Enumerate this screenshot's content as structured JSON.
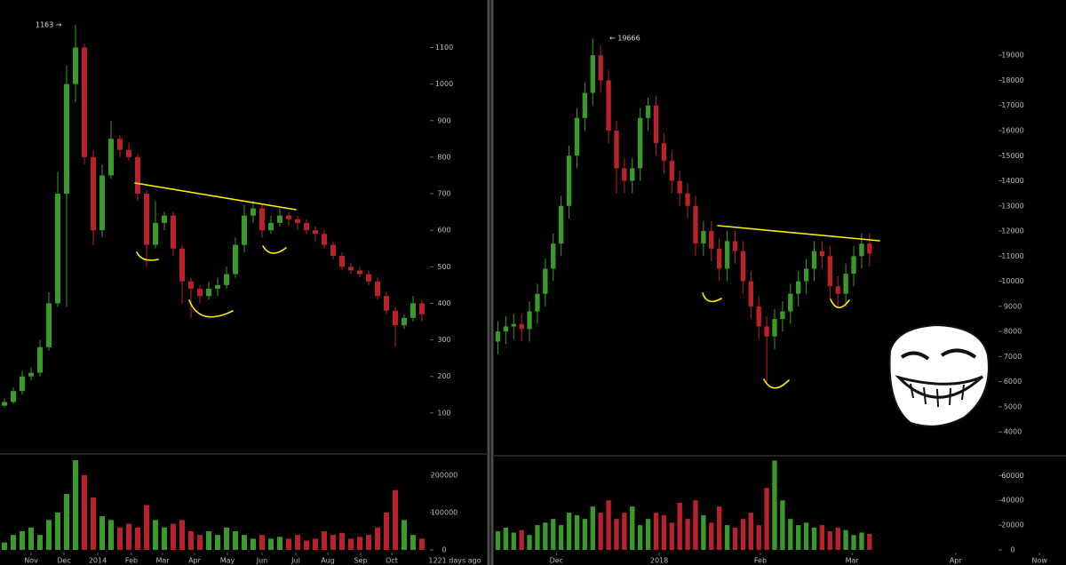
{
  "chart_data": [
    {
      "type": "candlestick",
      "annotation": "1163 →",
      "footer_note": "1221 days ago",
      "up_color": "#3a9a2c",
      "down_color": "#b8222a",
      "xlim": [
        -0.5,
        50.5
      ],
      "xticks": [
        {
          "value": 3,
          "label": "Nov"
        },
        {
          "value": 6.7,
          "label": "Dec"
        },
        {
          "value": 10.5,
          "label": "2014"
        },
        {
          "value": 14.3,
          "label": "Feb"
        },
        {
          "value": 17.8,
          "label": "Mar"
        },
        {
          "value": 21.4,
          "label": "Apr"
        },
        {
          "value": 25.1,
          "label": "May"
        },
        {
          "value": 29,
          "label": "Jun"
        },
        {
          "value": 32.8,
          "label": "Jul"
        },
        {
          "value": 36.4,
          "label": "Aug"
        },
        {
          "value": 40.1,
          "label": "Sep"
        },
        {
          "value": 43.6,
          "label": "Oct"
        }
      ],
      "ylim": [
        0,
        1230
      ],
      "yticks": [
        100,
        200,
        300,
        400,
        500,
        600,
        700,
        800,
        900,
        1000,
        1100
      ],
      "open": [
        120,
        130,
        160,
        200,
        210,
        280,
        400,
        700,
        1000,
        1100,
        800,
        600,
        750,
        850,
        820,
        800,
        700,
        560,
        620,
        640,
        550,
        460,
        440,
        420,
        440,
        450,
        480,
        560,
        640,
        660,
        600,
        620,
        640,
        630,
        620,
        600,
        590,
        560,
        530,
        500,
        490,
        480,
        460,
        420,
        380,
        340,
        360,
        400
      ],
      "high": [
        140,
        170,
        215,
        225,
        300,
        430,
        760,
        1050,
        1163,
        1110,
        820,
        780,
        900,
        860,
        840,
        810,
        710,
        680,
        650,
        650,
        560,
        470,
        450,
        460,
        470,
        500,
        580,
        670,
        680,
        670,
        640,
        660,
        650,
        640,
        630,
        610,
        600,
        570,
        540,
        510,
        500,
        490,
        470,
        430,
        390,
        370,
        420,
        410
      ],
      "low": [
        115,
        125,
        150,
        190,
        200,
        270,
        390,
        390,
        950,
        780,
        560,
        580,
        740,
        800,
        790,
        680,
        500,
        550,
        600,
        530,
        400,
        360,
        400,
        410,
        420,
        440,
        470,
        540,
        620,
        580,
        590,
        610,
        610,
        600,
        590,
        570,
        550,
        520,
        490,
        480,
        470,
        450,
        410,
        370,
        280,
        330,
        350,
        350
      ],
      "close": [
        130,
        160,
        200,
        210,
        280,
        400,
        700,
        1000,
        1100,
        800,
        600,
        750,
        850,
        820,
        800,
        700,
        560,
        620,
        640,
        550,
        460,
        440,
        420,
        440,
        450,
        480,
        560,
        640,
        660,
        600,
        620,
        640,
        630,
        620,
        600,
        590,
        560,
        530,
        500,
        490,
        480,
        460,
        420,
        380,
        340,
        360,
        400,
        370
      ],
      "volume": {
        "ylim": [
          0,
          252000
        ],
        "yticks": [
          0,
          100000,
          200000
        ],
        "values": [
          20000,
          40000,
          50000,
          60000,
          40000,
          80000,
          100000,
          150000,
          240000,
          200000,
          140000,
          90000,
          80000,
          60000,
          70000,
          60000,
          120000,
          80000,
          60000,
          70000,
          80000,
          50000,
          40000,
          50000,
          40000,
          60000,
          50000,
          40000,
          30000,
          40000,
          30000,
          35000,
          30000,
          40000,
          25000,
          30000,
          50000,
          40000,
          45000,
          30000,
          35000,
          40000,
          60000,
          100000,
          160000,
          80000,
          40000,
          30000
        ]
      }
    },
    {
      "type": "candlestick",
      "annotation": "← 19666",
      "up_color": "#3a9a2c",
      "down_color": "#b8222a",
      "xlim": [
        -0.5,
        70.5
      ],
      "xticks": [
        {
          "value": 7.4,
          "label": "Dec"
        },
        {
          "value": 20.4,
          "label": "2018"
        },
        {
          "value": 33.2,
          "label": "Feb"
        },
        {
          "value": 44.8,
          "label": "Mar"
        },
        {
          "value": 57.9,
          "label": "Apr"
        },
        {
          "value": 68.5,
          "label": "Now"
        }
      ],
      "ylim": [
        3300,
        21200
      ],
      "yticks": [
        4000,
        5000,
        6000,
        7000,
        8000,
        9000,
        10000,
        11000,
        12000,
        13000,
        14000,
        15000,
        16000,
        17000,
        18000,
        19000
      ],
      "open": [
        7600,
        8000,
        8200,
        8300,
        8100,
        8800,
        9500,
        10500,
        11500,
        13000,
        15000,
        16500,
        17500,
        19000,
        18000,
        16000,
        14500,
        14000,
        14500,
        16500,
        17000,
        15500,
        14800,
        14000,
        13500,
        13000,
        11500,
        12000,
        11300,
        10500,
        11600,
        11200,
        10000,
        9000,
        8200,
        7800,
        8500,
        8800,
        9500,
        10000,
        10500,
        11200,
        11000,
        9800,
        9500,
        10300,
        11000,
        11500
      ],
      "high": [
        8400,
        8600,
        8700,
        8700,
        9200,
        9900,
        10900,
        11900,
        13400,
        15400,
        16900,
        17900,
        19666,
        19400,
        18400,
        16400,
        14900,
        14900,
        16900,
        17300,
        17400,
        15900,
        15200,
        14400,
        13900,
        13400,
        12400,
        12400,
        11700,
        12000,
        12000,
        11600,
        10400,
        9400,
        8600,
        8900,
        9200,
        9900,
        10400,
        10900,
        11600,
        11600,
        11400,
        10200,
        10700,
        11400,
        11900,
        11900
      ],
      "low": [
        7100,
        7500,
        7700,
        7600,
        7600,
        8300,
        9000,
        10000,
        11000,
        12500,
        14500,
        16000,
        17000,
        17500,
        15500,
        13500,
        13500,
        13500,
        14000,
        16000,
        15000,
        14300,
        13500,
        13000,
        12500,
        11000,
        11000,
        10800,
        10000,
        10000,
        10700,
        9500,
        8500,
        7700,
        5900,
        7300,
        8000,
        8300,
        9000,
        9500,
        10000,
        10500,
        9300,
        9000,
        9000,
        9800,
        10500,
        10600
      ],
      "close": [
        8000,
        8200,
        8300,
        8100,
        8800,
        9500,
        10500,
        11500,
        13000,
        15000,
        16500,
        17500,
        19000,
        18000,
        16000,
        14500,
        14000,
        14500,
        16500,
        17000,
        15500,
        14800,
        14000,
        13500,
        13000,
        11500,
        12000,
        11300,
        10500,
        11600,
        11200,
        10000,
        9000,
        8200,
        7800,
        8500,
        8800,
        9500,
        10000,
        10500,
        11200,
        11000,
        9800,
        9500,
        10300,
        11000,
        11500,
        11100
      ],
      "volume": {
        "ylim": [
          0,
          76000
        ],
        "yticks": [
          0,
          20000,
          40000,
          60000
        ],
        "values": [
          15000,
          18000,
          14000,
          16000,
          12000,
          20000,
          22000,
          25000,
          20000,
          30000,
          28000,
          25000,
          35000,
          30000,
          40000,
          25000,
          30000,
          35000,
          20000,
          25000,
          30000,
          28000,
          22000,
          38000,
          25000,
          40000,
          28000,
          22000,
          35000,
          20000,
          18000,
          25000,
          30000,
          20000,
          50000,
          72000,
          40000,
          25000,
          20000,
          22000,
          18000,
          20000,
          15000,
          18000,
          16000,
          12000,
          14000,
          13000
        ]
      }
    }
  ]
}
